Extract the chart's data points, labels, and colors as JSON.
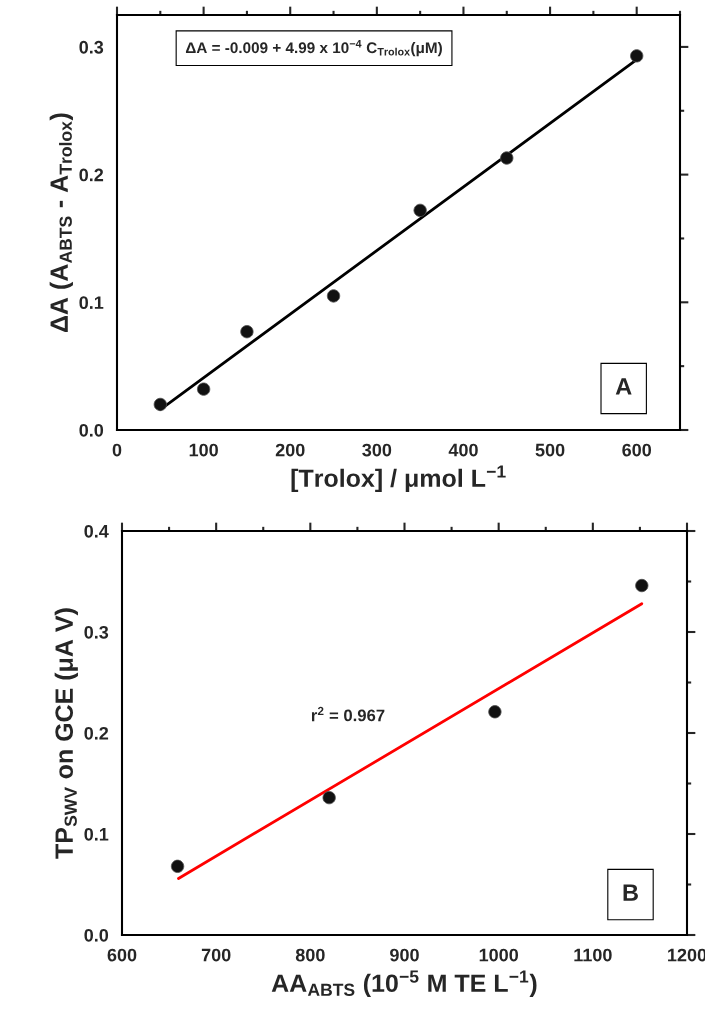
{
  "chart_data": [
    {
      "type": "scatter",
      "xlabel": "[Trolox] / μmol L$^{−1}$",
      "ylabel": "ΔA (A$_{ABTS}$ - A$_{Trolox}$)",
      "xlim": [
        0,
        650
      ],
      "xticks": [
        0,
        100,
        200,
        300,
        400,
        500,
        600
      ],
      "ylim": [
        0,
        0.325
      ],
      "yticks": [
        {
          "value": 0,
          "label": "0.0"
        },
        0.1,
        0.2,
        0.3
      ],
      "grid": false,
      "legend": false,
      "series": [
        {
          "marker": "circle",
          "color": "#111111",
          "x": [
            50,
            100,
            150,
            250,
            350,
            450,
            600
          ],
          "values": [
            0.02,
            0.032,
            0.077,
            0.105,
            0.172,
            0.213,
            0.293
          ]
        },
        {
          "type": "line",
          "marker": "none",
          "color": "#000000",
          "x": [
            50,
            600
          ],
          "values": [
            0.016,
            0.29
          ]
        }
      ],
      "annotations": [
        "ΔA = -0.009 + 4.99 x 10$^{−4}$ C$_{Trolox}$(μM)",
        "A"
      ]
    },
    {
      "type": "scatter",
      "xlabel": "AA$_{ABTS}$ (10$^{−5}$ M TE L$^{−1}$)",
      "ylabel": "TP$_{SWV}$ on GCE (μA V)",
      "xlim": [
        600,
        1200
      ],
      "xticks": [
        600,
        700,
        800,
        900,
        1000,
        1100,
        1200
      ],
      "ylim": [
        0,
        0.4
      ],
      "yticks": [
        {
          "value": 0,
          "label": "0.0"
        },
        0.1,
        0.2,
        0.3,
        0.4
      ],
      "grid": false,
      "legend": false,
      "series": [
        {
          "marker": "circle",
          "color": "#111111",
          "x": [
            659,
            820,
            996,
            1152
          ],
          "values": [
            0.068,
            0.136,
            0.221,
            0.346
          ]
        },
        {
          "type": "line",
          "marker": "none",
          "color": "#ff0000",
          "x": [
            660,
            1152
          ],
          "values": [
            0.056,
            0.328
          ]
        }
      ],
      "annotations": [
        "r$^{2}$ = 0.967",
        "B"
      ]
    }
  ]
}
